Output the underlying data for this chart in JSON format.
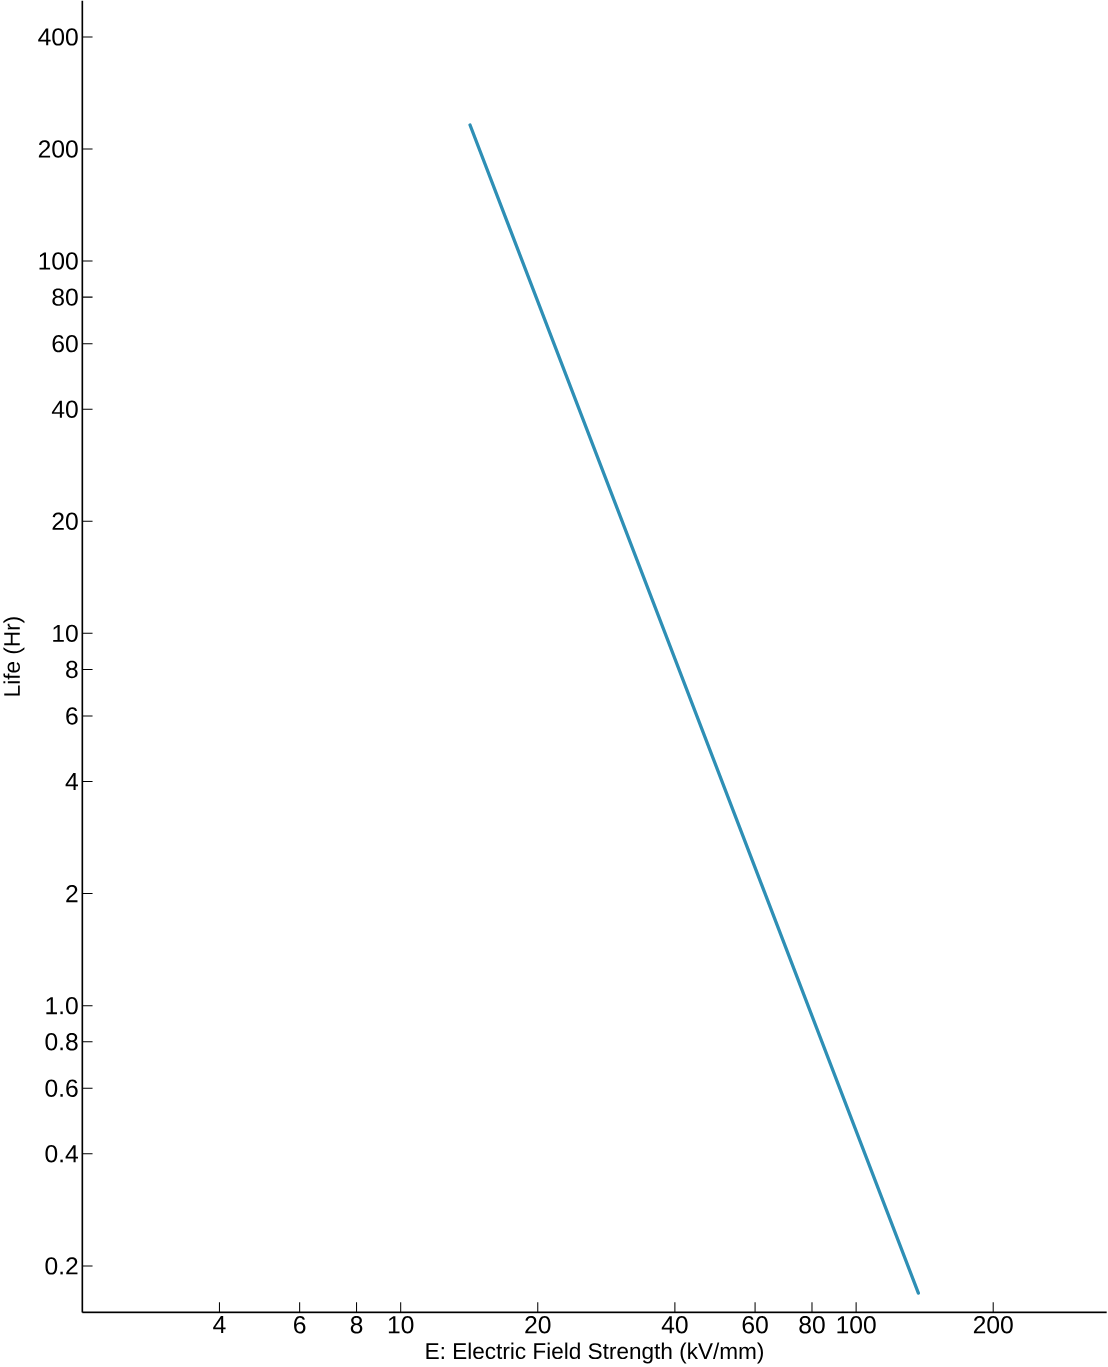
{
  "chart_data": {
    "type": "line",
    "xlabel": "E: Electric Field Strength (kV/mm)",
    "ylabel": "Life (Hr)",
    "log": "xy",
    "xlim": [
      2,
      355
    ],
    "ylim": [
      0.15,
      500
    ],
    "xticks": [
      4,
      6,
      8,
      10,
      20,
      40,
      60,
      80,
      100,
      200
    ],
    "yticks": [
      {
        "value": 0.2,
        "label": "0.2"
      },
      {
        "value": 0.4,
        "label": "0.4"
      },
      {
        "value": 0.6,
        "label": "0.6"
      },
      {
        "value": 0.8,
        "label": "0.8"
      },
      {
        "value": 1,
        "label": "1.0"
      },
      2,
      4,
      6,
      8,
      10,
      20,
      40,
      60,
      80,
      100,
      200,
      400
    ],
    "grid": false,
    "marker": "none",
    "line_style": "solid",
    "series": [
      {
        "color": "#2e8fb5",
        "x": [
          14.2,
          137
        ],
        "values": [
          232,
          0.169
        ]
      }
    ]
  }
}
